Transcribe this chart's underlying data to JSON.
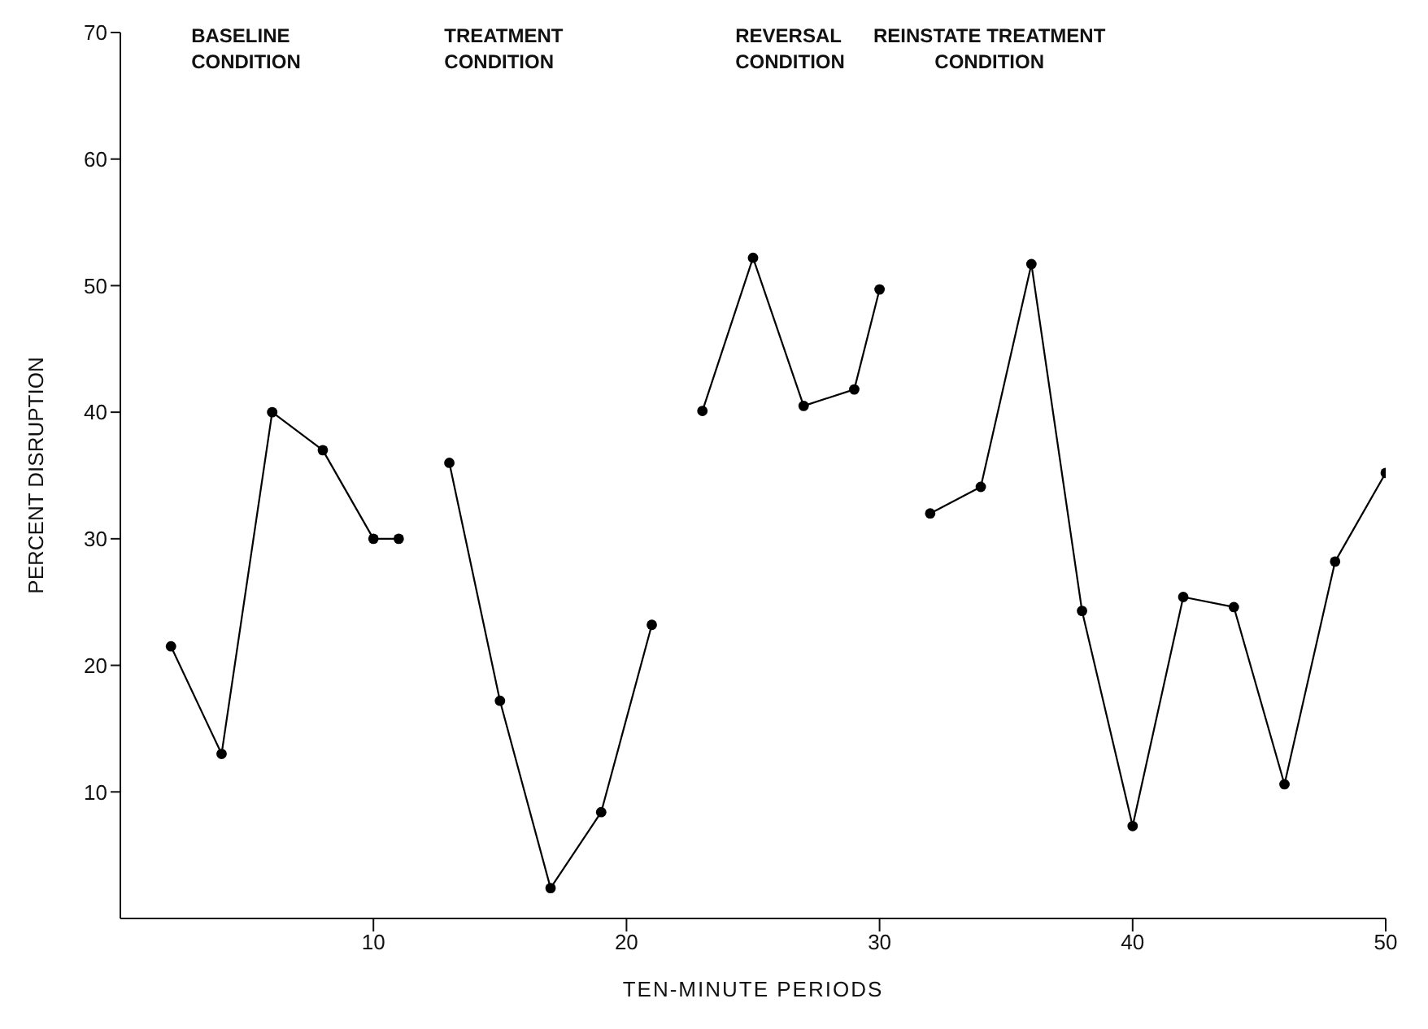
{
  "chart_data": {
    "type": "line",
    "xlabel": "TEN-MINUTE PERIODS",
    "ylabel": "PERCENT DISRUPTION",
    "xlim": [
      0,
      50
    ],
    "xticks": [
      10,
      20,
      30,
      40,
      50
    ],
    "ylim": [
      0,
      70
    ],
    "yticks": [
      10,
      20,
      30,
      40,
      50,
      60,
      70
    ],
    "marker": "circle",
    "line_style": "solid",
    "series": [
      {
        "color": "#000000",
        "x": [
          2,
          4,
          6,
          8,
          10,
          11
        ],
        "values": [
          21.5,
          13,
          40,
          37,
          30,
          30
        ]
      },
      {
        "color": "#000000",
        "x": [
          13,
          15,
          17,
          19,
          21
        ],
        "values": [
          36,
          17.2,
          2.4,
          8.4,
          23.2
        ]
      },
      {
        "color": "#000000",
        "x": [
          23,
          25,
          27,
          29,
          30
        ],
        "values": [
          40.1,
          52.2,
          40.5,
          41.8,
          49.7
        ]
      },
      {
        "color": "#000000",
        "x": [
          32,
          34,
          36,
          38,
          40,
          42,
          44,
          46,
          48,
          50
        ],
        "values": [
          32,
          34.1,
          51.7,
          24.3,
          7.3,
          25.4,
          24.6,
          10.6,
          28.2,
          35.2
        ]
      }
    ],
    "annotations": [
      "BASELINE\nCONDITION",
      "TREATMENT\nCONDITION",
      "REVERSAL\nCONDITION",
      "REINSTATE TREATMENT\nCONDITION"
    ]
  }
}
